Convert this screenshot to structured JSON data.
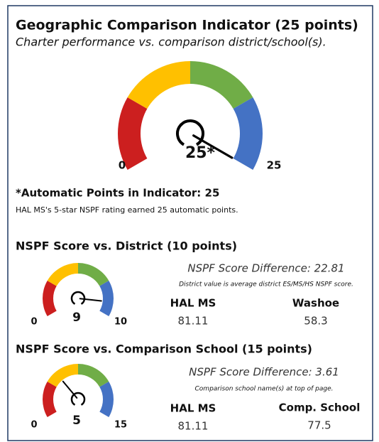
{
  "gauge_colors": [
    "#cc1f1f",
    "#ffc000",
    "#70ad47",
    "#4472c4"
  ],
  "main": {
    "title": "Geographic Comparison Indicator (25 points)",
    "subtitle": "Charter performance vs. comparison district/school(s).",
    "gauge": {
      "min": 0,
      "max": 25,
      "value": 25,
      "value_label": "25*"
    }
  },
  "note": {
    "title": "*Automatic Points in Indicator: 25",
    "text": "HAL MS's 5-star NSPF rating earned 25 automatic points."
  },
  "district": {
    "title": "NSPF Score vs. District (10 points)",
    "gauge": {
      "min": 0,
      "max": 10,
      "value": 9
    },
    "difference": "NSPF Score Difference: 22.81",
    "caption": "District value is average district ES/MS/HS NSPF score.",
    "columns": [
      {
        "name": "HAL MS",
        "value": 81.11
      },
      {
        "name": "Washoe",
        "value": 58.3
      }
    ]
  },
  "school": {
    "title": "NSPF Score vs. Comparison School (15 points)",
    "gauge": {
      "min": 0,
      "max": 15,
      "value": 5
    },
    "difference": "NSPF Score Difference: 3.61",
    "caption": "Comparison school name(s) at top of page.",
    "columns": [
      {
        "name": "HAL MS",
        "value": 81.11
      },
      {
        "name": "Comp. School",
        "value": 77.5
      }
    ]
  }
}
